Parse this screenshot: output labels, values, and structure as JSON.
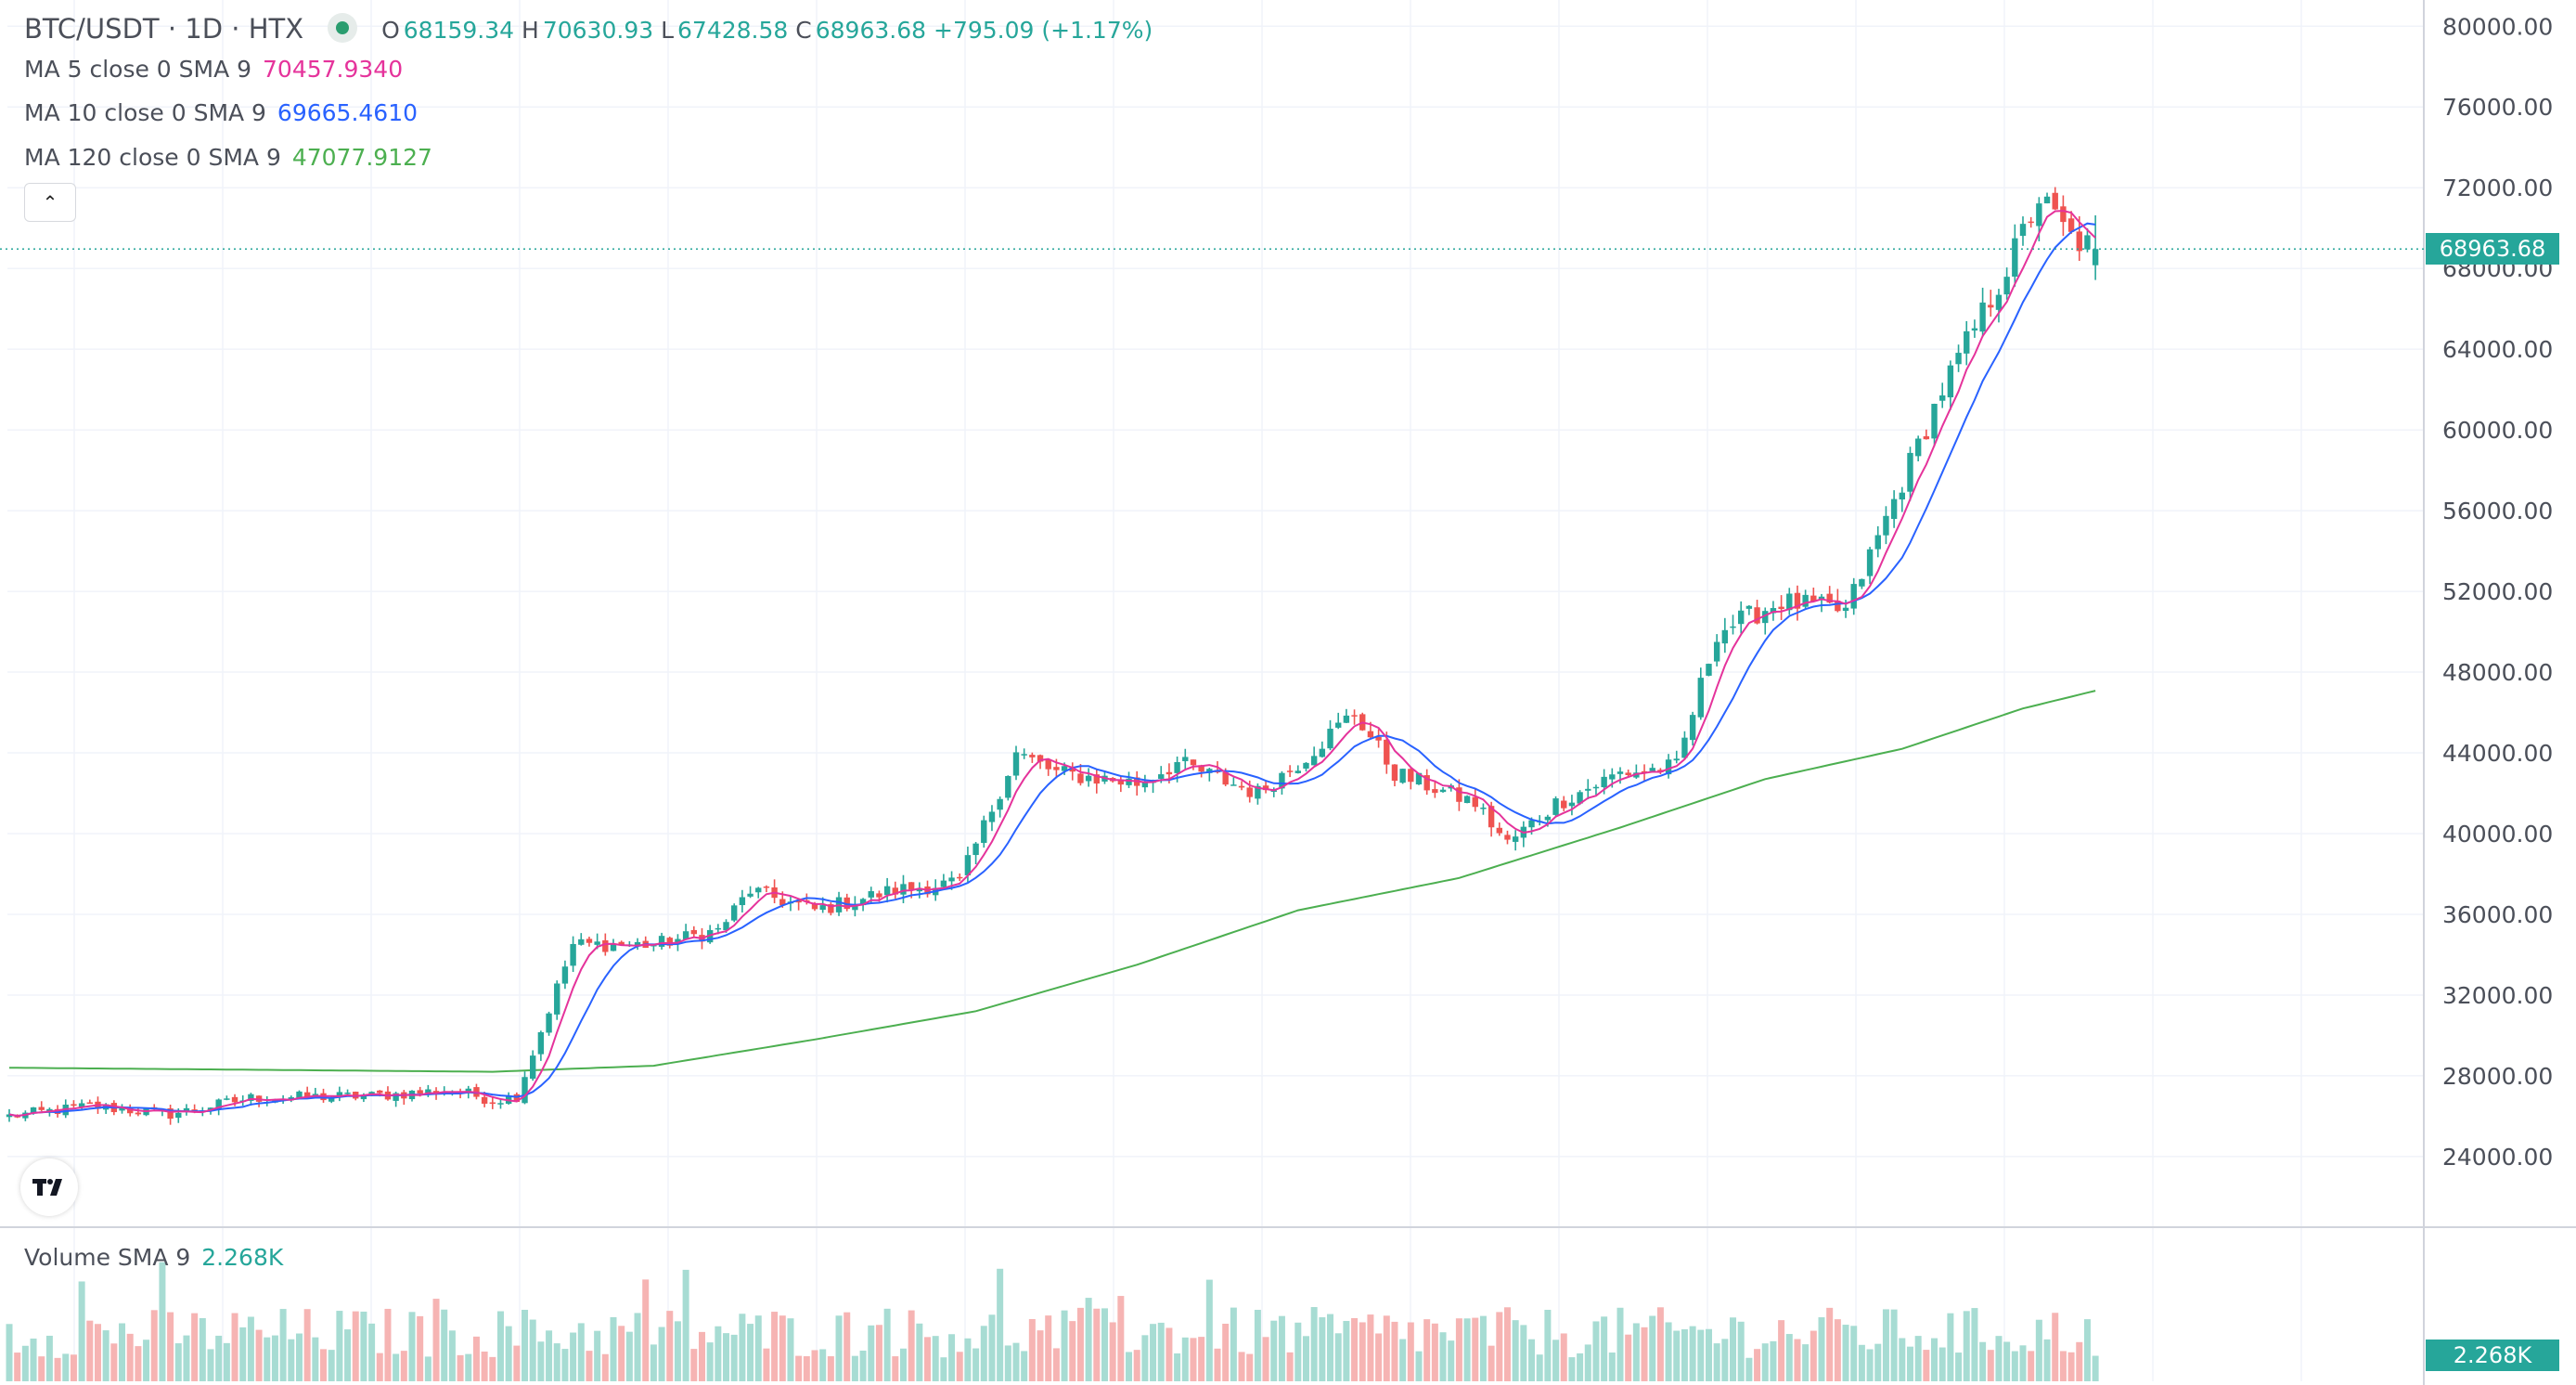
{
  "header": {
    "symbol": "BTC/USDT · 1D · HTX",
    "open_label": "O",
    "open": "68159.34",
    "high_label": "H",
    "high": "70630.93",
    "low_label": "L",
    "low": "67428.58",
    "close_label": "C",
    "close": "68963.68",
    "change": "+795.09 (+1.17%)"
  },
  "indicators": [
    {
      "label": "MA 5 close 0 SMA 9",
      "value": "70457.9340",
      "color": "#e5339b"
    },
    {
      "label": "MA 10 close 0 SMA 9",
      "value": "69665.4610",
      "color": "#2962ff"
    },
    {
      "label": "MA 120 close 0 SMA 9",
      "value": "47077.9127",
      "color": "#4caf50"
    }
  ],
  "volume": {
    "label": "Volume SMA 9",
    "value": "2.268K"
  },
  "last_price_tag": "68963.68",
  "colors": {
    "up": "#26a69a",
    "down": "#ef5350",
    "grid": "#f0f3fa"
  },
  "chart_data": {
    "type": "candlestick",
    "y_ticks": [
      "80000.00",
      "76000.00",
      "72000.00",
      "68000.00",
      "64000.00",
      "60000.00",
      "56000.00",
      "52000.00",
      "48000.00",
      "44000.00",
      "40000.00",
      "36000.00",
      "32000.00",
      "28000.00",
      "24000.00"
    ],
    "ylim": [
      20500,
      81300
    ],
    "grid": true,
    "waypoints": [
      [
        0,
        26000
      ],
      [
        10,
        26500
      ],
      [
        20,
        26100
      ],
      [
        30,
        26900
      ],
      [
        45,
        27000
      ],
      [
        55,
        27300
      ],
      [
        60,
        26800
      ],
      [
        63,
        27000
      ],
      [
        70,
        34500
      ],
      [
        80,
        34500
      ],
      [
        88,
        35200
      ],
      [
        92,
        37200
      ],
      [
        100,
        36200
      ],
      [
        110,
        37200
      ],
      [
        118,
        37600
      ],
      [
        125,
        44000
      ],
      [
        130,
        43000
      ],
      [
        140,
        42500
      ],
      [
        145,
        43500
      ],
      [
        155,
        42000
      ],
      [
        160,
        43500
      ],
      [
        167,
        46000
      ],
      [
        172,
        43000
      ],
      [
        182,
        41500
      ],
      [
        186,
        39500
      ],
      [
        192,
        41500
      ],
      [
        200,
        43000
      ],
      [
        207,
        43300
      ],
      [
        212,
        50000
      ],
      [
        220,
        51500
      ],
      [
        228,
        51000
      ],
      [
        240,
        62000
      ],
      [
        248,
        68000
      ],
      [
        252,
        71500
      ],
      [
        256,
        69500
      ],
      [
        259,
        68963.68
      ]
    ],
    "ma120_points": [
      [
        0,
        28400
      ],
      [
        60,
        28200
      ],
      [
        80,
        28500
      ],
      [
        100,
        29800
      ],
      [
        120,
        31200
      ],
      [
        140,
        33500
      ],
      [
        160,
        36200
      ],
      [
        180,
        37800
      ],
      [
        200,
        40300
      ],
      [
        218,
        42700
      ],
      [
        235,
        44200
      ],
      [
        250,
        46200
      ],
      [
        259,
        47077.9
      ]
    ],
    "ma5_last": 70457.93,
    "ma10_last": 69665.46
  }
}
